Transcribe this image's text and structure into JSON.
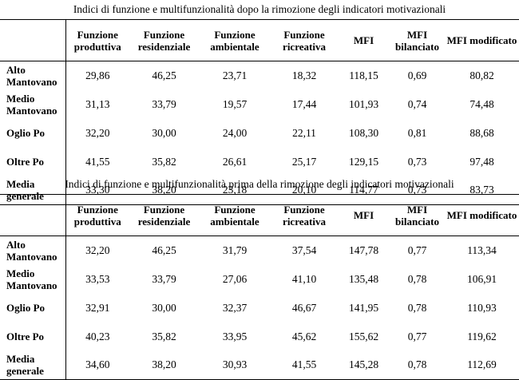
{
  "tables": [
    {
      "caption": "Indici di funzione e multifunzionalità dopo la rimozione degli indicatori motivazionali",
      "headers": [
        "",
        "Funzione produttiva",
        "Funzione residenziale",
        "Funzione ambientale",
        "Funzione ricreativa",
        "MFI",
        "MFI bilanciato",
        "MFI modificato"
      ],
      "rows": [
        [
          "Alto Mantovano",
          "29,86",
          "46,25",
          "23,71",
          "18,32",
          "118,15",
          "0,69",
          "80,82"
        ],
        [
          "Medio Mantovano",
          "31,13",
          "33,79",
          "19,57",
          "17,44",
          "101,93",
          "0,74",
          "74,48"
        ],
        [
          "Oglio Po",
          "32,20",
          "30,00",
          "24,00",
          "22,11",
          "108,30",
          "0,81",
          "88,68"
        ],
        [
          "Oltre Po",
          "41,55",
          "35,82",
          "26,61",
          "25,17",
          "129,15",
          "0,73",
          "97,48"
        ],
        [
          "Media generale",
          "33,30",
          "38,20",
          "23,18",
          "20,10",
          "114,77",
          "0,73",
          "83,73"
        ]
      ]
    },
    {
      "caption": "Indici di funzione e multifunzionalità prima della rimozione degli indicatori motivazionali",
      "headers": [
        "",
        "Funzione produttiva",
        "Funzione residenziale",
        "Funzione ambientale",
        "Funzione ricreativa",
        "MFI",
        "MFI bilanciato",
        "MFI modificato"
      ],
      "rows": [
        [
          "Alto Mantovano",
          "32,20",
          "46,25",
          "31,79",
          "37,54",
          "147,78",
          "0,77",
          "113,34"
        ],
        [
          "Medio Mantovano",
          "33,53",
          "33,79",
          "27,06",
          "41,10",
          "135,48",
          "0,78",
          "106,91"
        ],
        [
          "Oglio Po",
          "32,91",
          "30,00",
          "32,37",
          "46,67",
          "141,95",
          "0,78",
          "110,93"
        ],
        [
          "Oltre Po",
          "40,23",
          "35,82",
          "33,95",
          "45,62",
          "155,62",
          "0,77",
          "119,62"
        ],
        [
          "Media generale",
          "34,60",
          "38,20",
          "30,93",
          "41,55",
          "145,28",
          "0,78",
          "112,69"
        ]
      ]
    }
  ]
}
